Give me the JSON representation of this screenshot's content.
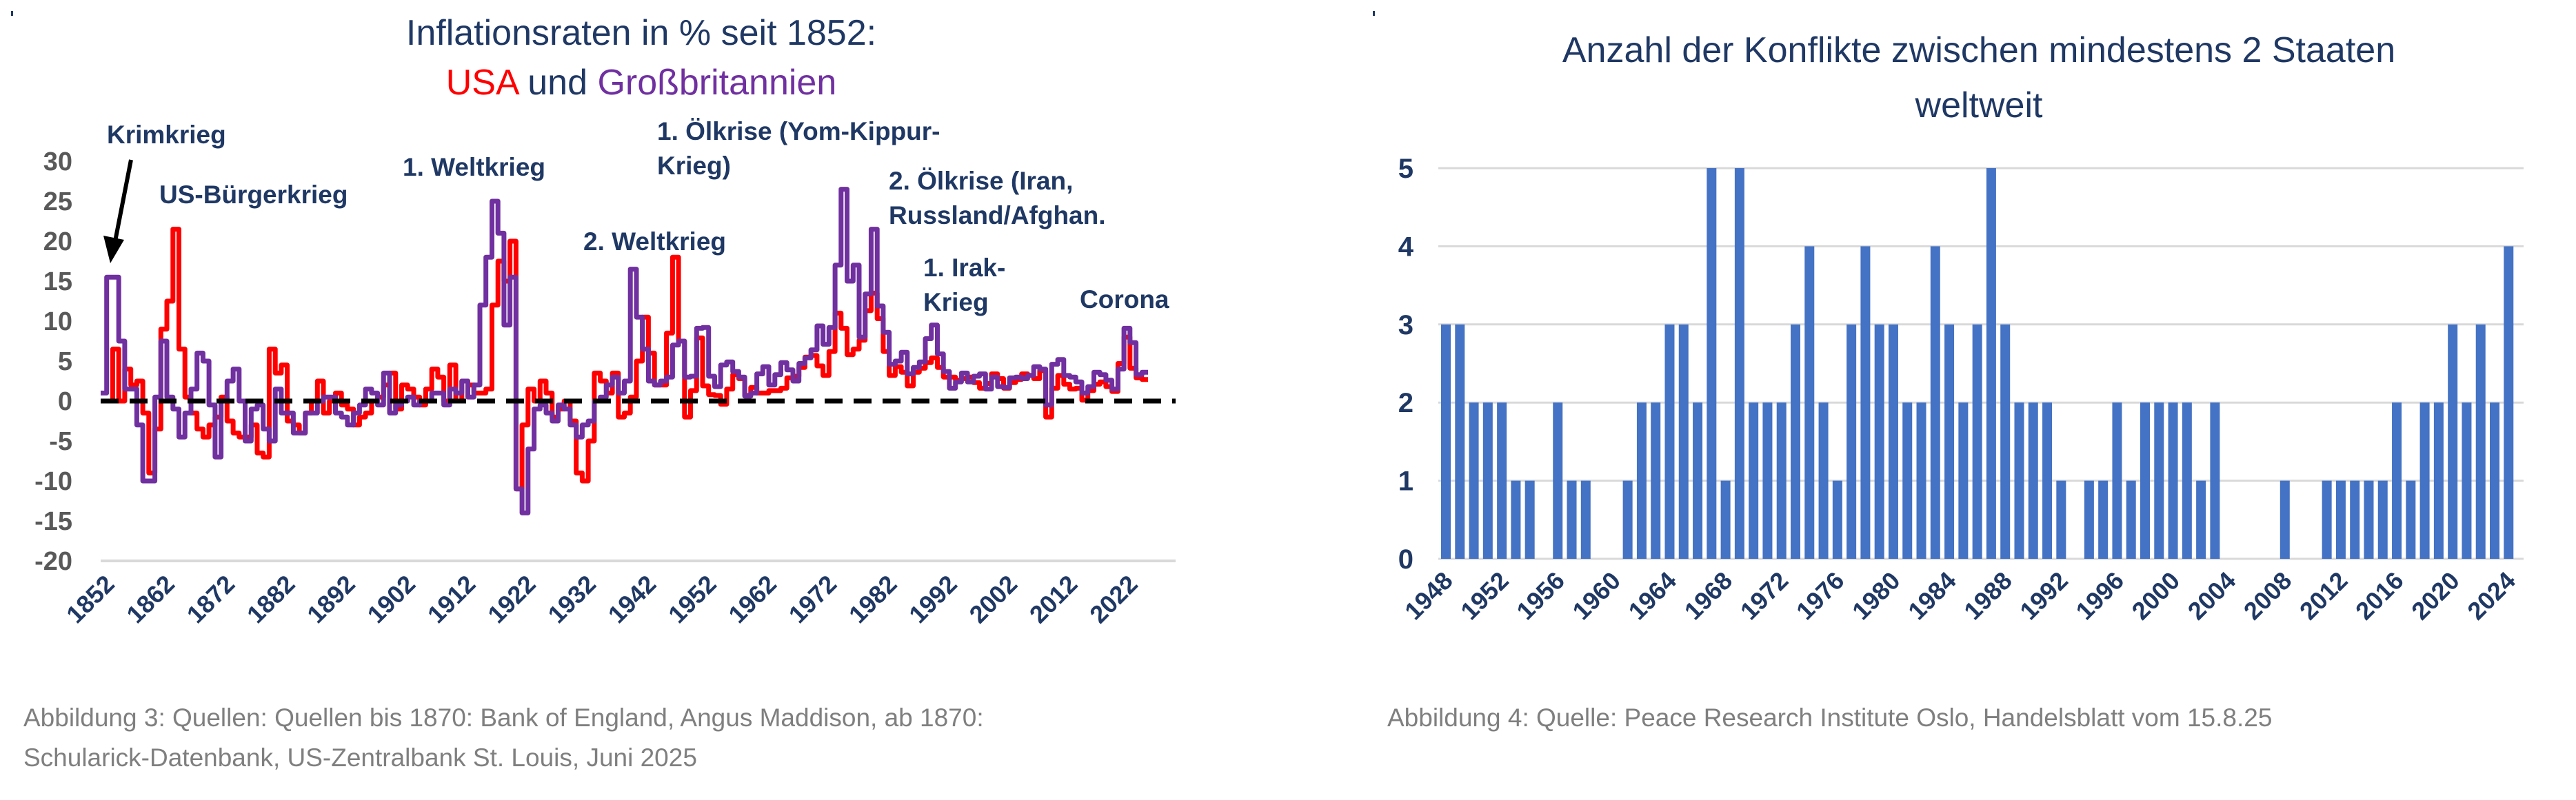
{
  "chart_data": [
    {
      "type": "line",
      "title_line1": "Inflationsraten in % seit 1852:",
      "title_line2": {
        "usa": "USA",
        "und": " und ",
        "gb": "Großbritannien"
      },
      "xlabel": "",
      "ylabel": "",
      "ylim": [
        -20,
        30
      ],
      "yticks": [
        "30",
        "25",
        "20",
        "15",
        "10",
        "5",
        "0",
        "-5",
        "-10",
        "-15",
        "-20"
      ],
      "ytick_values": [
        30,
        25,
        20,
        15,
        10,
        5,
        0,
        -5,
        -10,
        -15,
        -20
      ],
      "xticks": [
        "1852",
        "1862",
        "1872",
        "1882",
        "1892",
        "1902",
        "1912",
        "1922",
        "1932",
        "1942",
        "1952",
        "1962",
        "1972",
        "1982",
        "1992",
        "2002",
        "2012",
        "2022"
      ],
      "xlim": [
        1852,
        2030
      ],
      "reference_line": {
        "y": 0,
        "style": "dashed",
        "color": "#000000"
      },
      "start_year": 1852,
      "series": [
        {
          "name": "USA",
          "color": "#ff0000",
          "values": [
            0,
            0,
            6.5,
            0,
            4,
            2,
            2.5,
            -1.5,
            -9,
            -3.5,
            9,
            12.5,
            21.5,
            6.5,
            0.5,
            -1.5,
            -3.5,
            -4.5,
            -3,
            -2,
            0.5,
            -2.5,
            -4,
            -4.5,
            -4.5,
            -3,
            -6.5,
            -7,
            6.5,
            3.5,
            4.5,
            -2.5,
            -3,
            -4,
            -1.5,
            0,
            2.5,
            -1.5,
            0,
            1,
            -0.5,
            -1,
            -3,
            -2,
            -1.5,
            0,
            0.5,
            2,
            3.5,
            -1,
            2,
            1.5,
            0.5,
            -0.5,
            1.5,
            4,
            3,
            0,
            4.5,
            0,
            2.5,
            2,
            1,
            1,
            1.5,
            12,
            17.5,
            15,
            20,
            -11,
            -3,
            1.5,
            0,
            2.5,
            1,
            -2,
            -1,
            0,
            -2.5,
            -9,
            -10,
            -5,
            3.5,
            2.5,
            1,
            3.5,
            -2,
            -1.5,
            0.5,
            5,
            10.5,
            6,
            2,
            2,
            8.5,
            18,
            7.5,
            -2,
            1.3,
            7.9,
            1.9,
            0.8,
            0.7,
            -0.4,
            1.5,
            3.3,
            2.8,
            0.7,
            1.7,
            1.0,
            1.0,
            1.3,
            1.3,
            1.6,
            2.9,
            3.1,
            4.2,
            5.5,
            5.7,
            4.4,
            3.2,
            6.2,
            11.0,
            9.1,
            5.8,
            6.5,
            7.6,
            11.3,
            13.5,
            10.3,
            6.2,
            3.2,
            4.3,
            3.6,
            1.9,
            3.6,
            4.1,
            4.8,
            5.4,
            4.2,
            3.0,
            3.0,
            2.6,
            2.8,
            3.0,
            2.3,
            1.6,
            2.2,
            3.4,
            2.8,
            1.6,
            2.3,
            2.7,
            3.4,
            3.2,
            2.8,
            3.8,
            -2.0,
            1.6,
            3.2,
            2.1,
            1.5,
            1.6,
            0.1,
            1.3,
            2.1,
            2.4,
            1.8,
            1.2,
            4.7,
            8.0,
            4.1,
            2.9,
            2.7
          ]
        },
        {
          "name": "Großbritannien",
          "color": "#7030a0",
          "values": [
            1,
            15.5,
            15.5,
            7.5,
            1.5,
            1.5,
            -3,
            -10,
            -10,
            0.5,
            7.5,
            0.5,
            -1,
            -4.5,
            -1.5,
            1.5,
            6,
            5,
            -0.5,
            -7,
            0,
            2.5,
            4,
            0,
            -5,
            -1,
            -0.5,
            -3.5,
            -5,
            1.5,
            -1.5,
            -1.5,
            -4,
            -4,
            -1.5,
            -1.5,
            0,
            0.5,
            0.5,
            -1.5,
            -2,
            -3,
            -1.5,
            -0.5,
            1.5,
            1,
            -0.5,
            3.5,
            -1.5,
            -0.5,
            0,
            0.5,
            -0.5,
            0,
            0,
            1,
            1,
            -0.5,
            1.5,
            1,
            2.5,
            0.5,
            2,
            12,
            18,
            25,
            21,
            9.5,
            15.5,
            -11,
            -14,
            -6,
            -1,
            -0.5,
            -1.5,
            -2.5,
            -0.5,
            -1,
            -3,
            -4.5,
            -3,
            -2.5,
            0,
            0.5,
            2,
            3,
            1,
            2.5,
            16.5,
            10.5,
            6.5,
            2.5,
            2,
            2.5,
            3,
            7,
            7.5,
            3,
            3.1,
            9.1,
            9.2,
            3.1,
            1.8,
            4.5,
            4.9,
            3.7,
            3.0,
            0.6,
            1.0,
            3.4,
            4.3,
            2.0,
            3.3,
            4.8,
            3.9,
            2.5,
            4.7,
            5.4,
            6.4,
            9.4,
            7.1,
            9.2,
            17,
            26.5,
            15,
            17,
            8,
            13.4,
            21.5,
            11.9,
            8.6,
            4.6,
            5.0,
            6.1,
            3.4,
            4.2,
            4.9,
            7.8,
            9.5,
            5.9,
            3.7,
            1.6,
            2.4,
            3.5,
            2.4,
            3.1,
            3.4,
            1.5,
            3.0,
            1.8,
            1.7,
            2.9,
            3.0,
            2.8,
            3.2,
            4.3,
            4.0,
            -0.5,
            4.6,
            5.2,
            3.2,
            3.0,
            2.4,
            1.0,
            1.8,
            3.6,
            3.3,
            2.6,
            1.5,
            4.0,
            9.1,
            7.3,
            3.3,
            3.6
          ]
        }
      ],
      "annotations": [
        {
          "id": "krimkrieg",
          "lines": [
            "Krimkrieg"
          ]
        },
        {
          "id": "us-buergerkrieg",
          "lines": [
            "US-Bürgerkrieg"
          ]
        },
        {
          "id": "weltkrieg-1",
          "lines": [
            "1. Weltkrieg"
          ]
        },
        {
          "id": "weltkrieg-2",
          "lines": [
            "2. Weltkrieg"
          ]
        },
        {
          "id": "oelkrise-1",
          "lines": [
            "1. Ölkrise (Yom-Kippur-",
            "Krieg)"
          ]
        },
        {
          "id": "oelkrise-2",
          "lines": [
            "2. Ölkrise (Iran,",
            "Russland/Afghan."
          ]
        },
        {
          "id": "irak-krieg",
          "lines": [
            "1. Irak-",
            "Krieg"
          ]
        },
        {
          "id": "corona",
          "lines": [
            "Corona"
          ]
        }
      ],
      "grid": false,
      "legend": "none",
      "caption_line1": "Abbildung 3: Quellen: Quellen bis 1870: Bank of England, Angus Maddison, ab 1870:",
      "caption_line2": "Schularick-Datenbank, US-Zentralbank St. Louis, Juni 2025"
    },
    {
      "type": "bar",
      "title_line1": "Anzahl der Konflikte zwischen mindestens 2 Staaten",
      "title_line2": "weltweit",
      "xlabel": "",
      "ylabel": "",
      "ylim": [
        0,
        5
      ],
      "yticks": [
        "5",
        "4",
        "3",
        "2",
        "1",
        "0"
      ],
      "ytick_values": [
        5,
        4,
        3,
        2,
        1,
        0
      ],
      "grid": true,
      "color": "#4472c4",
      "start_year": 1948,
      "xticks": [
        "1948",
        "1952",
        "1956",
        "1960",
        "1964",
        "1968",
        "1972",
        "1976",
        "1980",
        "1984",
        "1988",
        "1992",
        "1996",
        "2000",
        "2004",
        "2008",
        "2012",
        "2016",
        "2020",
        "2024"
      ],
      "values": [
        3,
        3,
        2,
        2,
        2,
        1,
        1,
        0,
        2,
        1,
        1,
        0,
        0,
        1,
        2,
        2,
        3,
        3,
        2,
        5,
        1,
        5,
        2,
        2,
        2,
        3,
        4,
        2,
        1,
        3,
        4,
        3,
        3,
        2,
        2,
        4,
        3,
        2,
        3,
        5,
        3,
        2,
        2,
        2,
        1,
        0,
        1,
        1,
        2,
        1,
        2,
        2,
        2,
        2,
        1,
        2,
        0,
        0,
        0,
        0,
        1,
        0,
        0,
        1,
        1,
        1,
        1,
        1,
        2,
        1,
        2,
        2,
        3,
        2,
        3,
        2,
        4
      ],
      "caption": "Abbildung 4: Quelle: Peace Research Institute Oslo, Handelsblatt vom 15.8.25"
    }
  ]
}
